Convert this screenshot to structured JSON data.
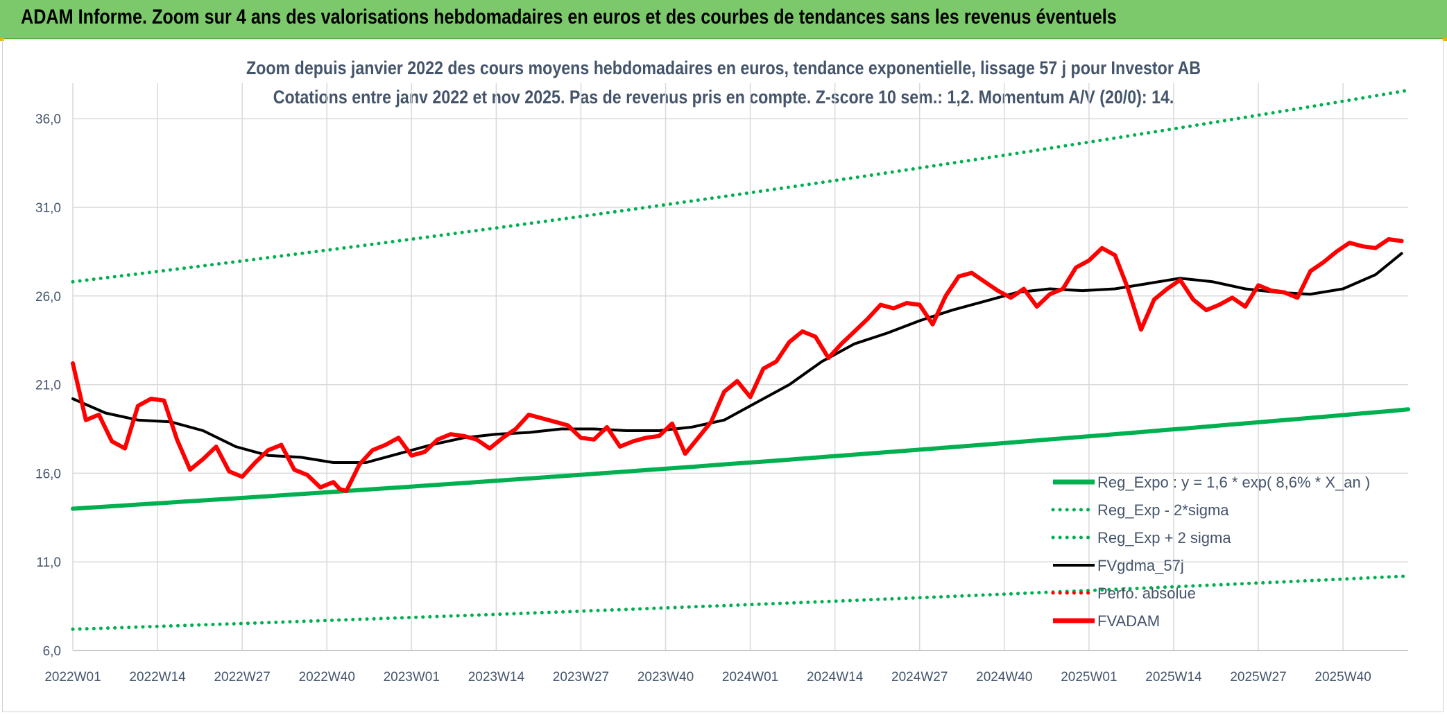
{
  "banner": {
    "title": "ADAM Informe. Zoom sur 4 ans des valorisations hebdomadaires en euros et des courbes de tendances sans les revenus éventuels"
  },
  "chart_data": {
    "type": "line",
    "title": "Zoom depuis janvier 2022 des cours moyens hebdomadaires en euros, tendance exponentielle, lissage 57 j pour Investor AB",
    "subtitle": "Cotations entre janv 2022 et nov 2025. Pas de revenus pris en compte. Z-score 10 sem.: 1,2. Momentum A/V (20/0): 14.",
    "xlabel": "",
    "ylabel": "",
    "ylim": [
      6.0,
      38.0
    ],
    "yticks": [
      6.0,
      11.0,
      16.0,
      21.0,
      26.0,
      31.0,
      36.0
    ],
    "ytick_labels": [
      "6,0",
      "11,0",
      "16,0",
      "21,0",
      "26,0",
      "31,0",
      "36,0"
    ],
    "xlim": [
      0,
      205
    ],
    "xticks": [
      0,
      13,
      26,
      39,
      52,
      65,
      78,
      91,
      104,
      117,
      130,
      143,
      156,
      169,
      182,
      195
    ],
    "xtick_labels": [
      "2022W01",
      "2022W14",
      "2022W27",
      "2022W40",
      "2023W01",
      "2023W14",
      "2023W27",
      "2023W40",
      "2024W01",
      "2024W14",
      "2024W27",
      "2024W40",
      "2025W01",
      "2025W14",
      "2025W27",
      "2025W40"
    ],
    "grid": "vertical and horizontal",
    "legend_position": "bottom-right",
    "colors": {
      "reg_expo": "#00b050",
      "fvgdma": "#000000",
      "perfo": "#ff0000",
      "fvadam": "#ff0000",
      "grid": "#d9d9d9",
      "text": "#44546a",
      "banner": "#7cc96b"
    },
    "series": [
      {
        "name": "Reg_Expo : y = 1,6 * exp( 8,6% *  X_an )",
        "style": "solid-thick",
        "color": "#00b050",
        "x": [
          0,
          205
        ],
        "values": [
          14.0,
          19.6
        ],
        "curve": "exponential"
      },
      {
        "name": "Reg_Exp - 2*sigma",
        "style": "dotted",
        "color": "#00b050",
        "x": [
          0,
          205
        ],
        "values": [
          7.2,
          10.2
        ],
        "curve": "exponential"
      },
      {
        "name": "Reg_Exp + 2 sigma",
        "style": "dotted",
        "color": "#00b050",
        "x": [
          0,
          205
        ],
        "values": [
          26.8,
          37.6
        ],
        "curve": "exponential"
      },
      {
        "name": "FVgdma_57j",
        "style": "solid",
        "color": "#000000",
        "x": [
          0,
          5,
          10,
          15,
          20,
          25,
          30,
          35,
          40,
          45,
          50,
          55,
          60,
          65,
          70,
          75,
          80,
          85,
          90,
          95,
          100,
          105,
          110,
          115,
          120,
          125,
          130,
          135,
          140,
          145,
          150,
          155,
          160,
          165,
          170,
          175,
          180,
          185,
          190,
          195,
          200,
          204
        ],
        "values": [
          20.2,
          19.4,
          19.0,
          18.9,
          18.4,
          17.5,
          17.0,
          16.9,
          16.6,
          16.6,
          17.1,
          17.6,
          18.0,
          18.2,
          18.3,
          18.5,
          18.5,
          18.4,
          18.4,
          18.6,
          19.0,
          20.0,
          21.0,
          22.3,
          23.3,
          23.9,
          24.6,
          25.2,
          25.7,
          26.2,
          26.4,
          26.3,
          26.4,
          26.7,
          27.0,
          26.8,
          26.4,
          26.2,
          26.1,
          26.4,
          27.2,
          28.4
        ]
      },
      {
        "name": "Perfo. absolue",
        "style": "dotted",
        "color": "#ff0000",
        "x": [],
        "values": []
      },
      {
        "name": "FVADAM",
        "style": "solid-thick",
        "color": "#ff0000",
        "x": [
          0,
          2,
          4,
          6,
          8,
          10,
          12,
          14,
          16,
          18,
          20,
          22,
          24,
          26,
          28,
          30,
          32,
          34,
          36,
          38,
          40,
          41,
          42,
          44,
          46,
          48,
          50,
          52,
          54,
          56,
          58,
          60,
          62,
          64,
          66,
          68,
          70,
          72,
          74,
          76,
          78,
          80,
          82,
          84,
          86,
          88,
          90,
          92,
          94,
          96,
          98,
          100,
          102,
          104,
          106,
          108,
          110,
          112,
          114,
          116,
          118,
          120,
          122,
          124,
          126,
          128,
          130,
          132,
          134,
          136,
          138,
          140,
          142,
          144,
          146,
          148,
          150,
          152,
          154,
          156,
          158,
          160,
          162,
          164,
          166,
          168,
          170,
          172,
          174,
          176,
          178,
          180,
          182,
          184,
          186,
          188,
          190,
          192,
          194,
          196,
          198,
          200,
          202,
          204
        ],
        "values": [
          22.2,
          19.0,
          19.3,
          17.8,
          17.4,
          19.8,
          20.2,
          20.1,
          17.9,
          16.2,
          16.8,
          17.5,
          16.1,
          15.8,
          16.6,
          17.3,
          17.6,
          16.2,
          15.9,
          15.2,
          15.5,
          15.1,
          15.0,
          16.5,
          17.3,
          17.6,
          18.0,
          17.0,
          17.2,
          17.9,
          18.2,
          18.1,
          17.9,
          17.4,
          18.0,
          18.5,
          19.3,
          19.1,
          18.9,
          18.7,
          18.0,
          17.9,
          18.6,
          17.5,
          17.8,
          18.0,
          18.1,
          18.8,
          17.1,
          18.0,
          18.9,
          20.6,
          21.2,
          20.3,
          21.9,
          22.3,
          23.4,
          24.0,
          23.7,
          22.5,
          23.3,
          24.0,
          24.7,
          25.5,
          25.3,
          25.6,
          25.5,
          24.4,
          26.0,
          27.1,
          27.3,
          26.8,
          26.3,
          25.9,
          26.4,
          25.4,
          26.1,
          26.4,
          27.6,
          28.0,
          28.7,
          28.3,
          26.4,
          24.1,
          25.8,
          26.4,
          26.9,
          25.8,
          25.2,
          25.5,
          25.9,
          25.4,
          26.6,
          26.3,
          26.2,
          25.9,
          27.4,
          27.9,
          28.5,
          29.0,
          28.8,
          28.7,
          29.2,
          29.1
        ]
      }
    ]
  }
}
